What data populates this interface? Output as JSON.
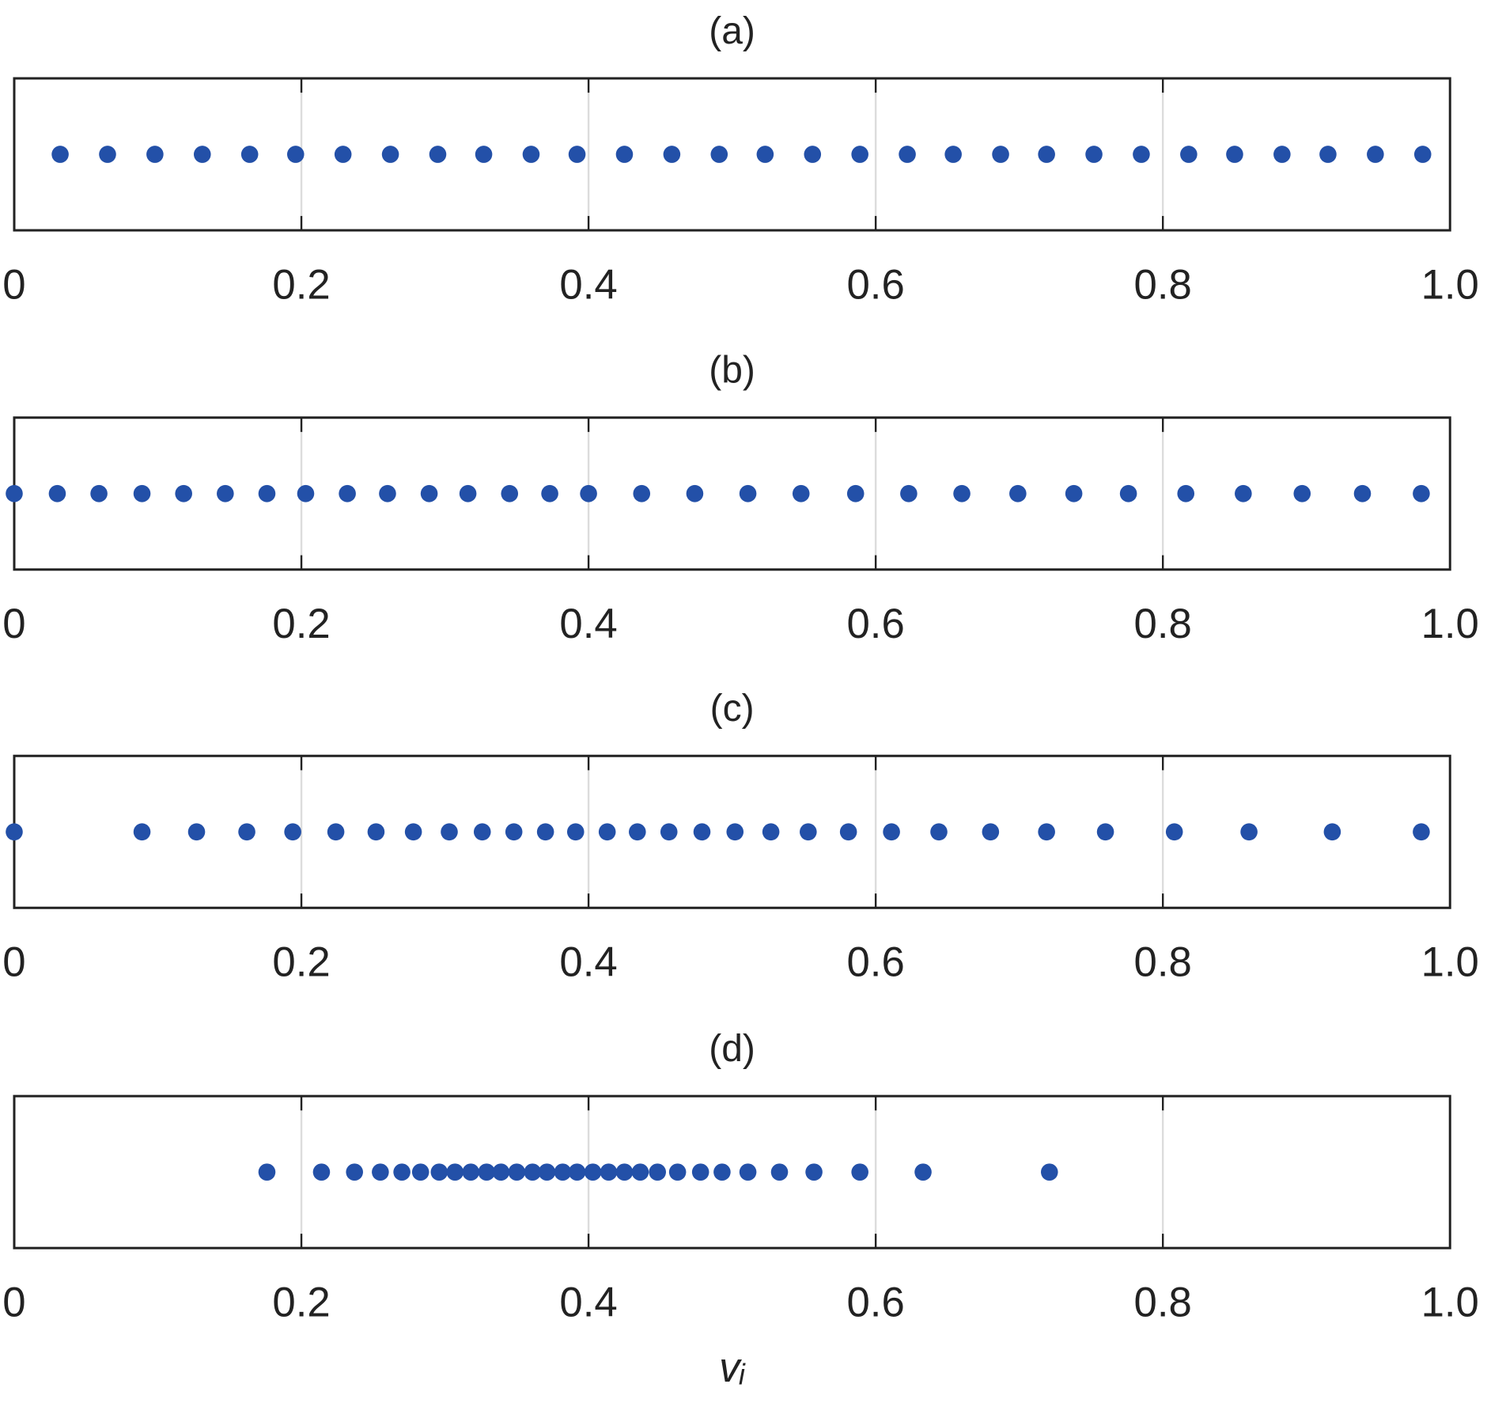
{
  "chart_data": [
    {
      "type": "scatter",
      "title": "(a)",
      "color": "#2350a8",
      "xlim": [
        0,
        1
      ],
      "xticks": [
        0,
        0.2,
        0.4,
        0.6,
        0.8,
        {
          "value": 1,
          "label": "1.0"
        }
      ],
      "grid": true,
      "x": [
        0.032,
        0.065,
        0.098,
        0.131,
        0.164,
        0.196,
        0.229,
        0.262,
        0.295,
        0.327,
        0.36,
        0.392,
        0.425,
        0.458,
        0.491,
        0.523,
        0.556,
        0.589,
        0.622,
        0.654,
        0.687,
        0.719,
        0.752,
        0.785,
        0.818,
        0.85,
        0.883,
        0.915,
        0.948,
        0.981
      ]
    },
    {
      "type": "scatter",
      "title": "(b)",
      "color": "#2350a8",
      "xlim": [
        0,
        1
      ],
      "xticks": [
        0,
        0.2,
        0.4,
        0.6,
        0.8,
        {
          "value": 1,
          "label": "1.0"
        }
      ],
      "grid": true,
      "x": [
        0,
        0.03,
        0.059,
        0.089,
        0.118,
        0.147,
        0.176,
        0.203,
        0.232,
        0.26,
        0.289,
        0.316,
        0.345,
        0.373,
        0.4,
        0.437,
        0.474,
        0.511,
        0.548,
        0.586,
        0.623,
        0.66,
        0.699,
        0.738,
        0.776,
        0.816,
        0.856,
        0.897,
        0.939,
        0.98
      ]
    },
    {
      "type": "scatter",
      "title": "(c)",
      "color": "#2350a8",
      "xlim": [
        0,
        1
      ],
      "xticks": [
        0,
        0.2,
        0.4,
        0.6,
        0.8,
        {
          "value": 1,
          "label": "1.0"
        }
      ],
      "grid": true,
      "x": [
        0,
        0.089,
        0.127,
        0.162,
        0.194,
        0.224,
        0.252,
        0.278,
        0.303,
        0.326,
        0.348,
        0.37,
        0.391,
        0.413,
        0.434,
        0.456,
        0.479,
        0.502,
        0.527,
        0.553,
        0.581,
        0.611,
        0.644,
        0.68,
        0.719,
        0.76,
        0.808,
        0.86,
        0.918,
        0.98
      ]
    },
    {
      "type": "scatter",
      "title": "(d)",
      "color": "#2350a8",
      "xlim": [
        0,
        1
      ],
      "xticks": [
        0,
        0.2,
        0.4,
        0.6,
        0.8,
        {
          "value": 1,
          "label": "1.0"
        }
      ],
      "grid": true,
      "xlabel": "vᵢ",
      "x": [
        0.176,
        0.214,
        0.237,
        0.255,
        0.27,
        0.283,
        0.296,
        0.307,
        0.318,
        0.329,
        0.339,
        0.35,
        0.361,
        0.371,
        0.382,
        0.392,
        0.403,
        0.414,
        0.425,
        0.436,
        0.448,
        0.462,
        0.478,
        0.493,
        0.511,
        0.533,
        0.557,
        0.589,
        0.633,
        0.721
      ]
    }
  ]
}
